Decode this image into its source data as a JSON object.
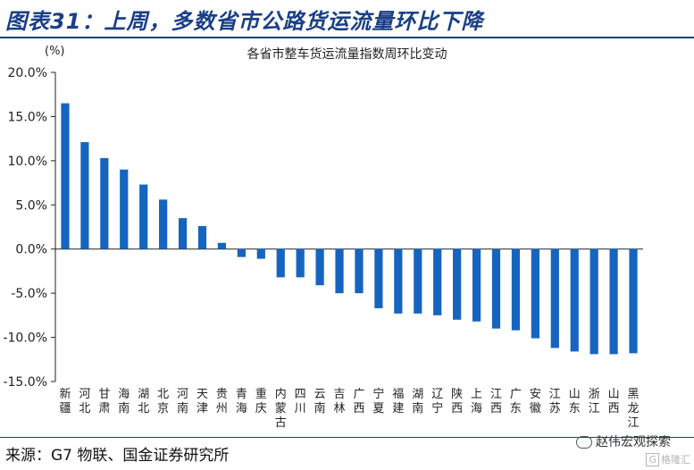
{
  "header": {
    "title": "图表31：上周，多数省市公路货运流量环比下降"
  },
  "footer": {
    "source": "来源：G7 物联、国金证券研究所",
    "brand": "赵伟宏观探索",
    "watermark_box": "G",
    "watermark": "格隆汇"
  },
  "colors": {
    "bar": "#1565c0",
    "accent": "#1a3f86"
  },
  "chart_data": {
    "type": "bar",
    "title": "各省市整车货运流量指数周环比变动",
    "ylabel": "(%)",
    "ylim": [
      -15,
      20
    ],
    "yticks": [
      -15,
      -10,
      -5,
      0,
      5,
      10,
      15,
      20
    ],
    "ytick_labels": [
      "-15.0%",
      "-10.0%",
      "-5.0%",
      "0.0%",
      "5.0%",
      "10.0%",
      "15.0%",
      "20.0%"
    ],
    "grid": false,
    "categories": [
      "新疆",
      "河北",
      "甘肃",
      "海南",
      "湖北",
      "北京",
      "河南",
      "天津",
      "贵州",
      "青海",
      "重庆",
      "内蒙古",
      "四川",
      "云南",
      "吉林",
      "广西",
      "宁夏",
      "福建",
      "湖南",
      "辽宁",
      "陕西",
      "上海",
      "江西",
      "广东",
      "安徽",
      "江苏",
      "山东",
      "浙江",
      "山西",
      "黑龙江"
    ],
    "values": [
      16.5,
      12.1,
      10.3,
      9.0,
      7.3,
      5.6,
      3.5,
      2.6,
      0.7,
      -0.9,
      -1.1,
      -3.2,
      -3.2,
      -4.1,
      -5.0,
      -5.0,
      -6.7,
      -7.3,
      -7.3,
      -7.5,
      -8.0,
      -8.2,
      -9.0,
      -9.2,
      -10.1,
      -11.2,
      -11.6,
      -11.9,
      -11.9,
      -11.8
    ]
  }
}
